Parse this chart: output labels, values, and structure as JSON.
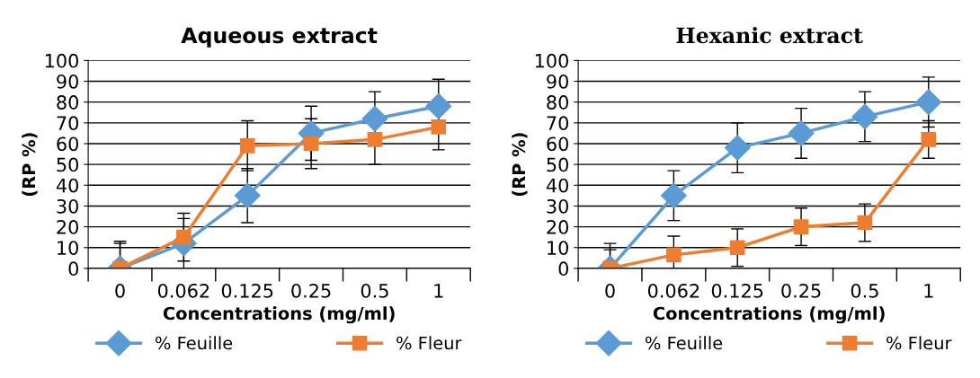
{
  "chart_data": [
    {
      "type": "line",
      "title": "Aqueous extract",
      "xlabel": "Concentrations (mg/ml)",
      "ylabel": "(RP %)",
      "categories": [
        "0",
        "0.062",
        "0.125",
        "0.25",
        "0.5",
        "1"
      ],
      "ylim": [
        0,
        100
      ],
      "yticks": [
        0,
        10,
        20,
        30,
        40,
        50,
        60,
        70,
        80,
        90,
        100
      ],
      "grid": "y",
      "legend": "bottom",
      "series": [
        {
          "name": "% Feuille",
          "color": "#5b9bd5",
          "marker": "diamond",
          "values": [
            0,
            12,
            35,
            65,
            72,
            78
          ],
          "errors": [
            12,
            12,
            13,
            13,
            13,
            13
          ]
        },
        {
          "name": "% Fleur",
          "color": "#ed7d31",
          "marker": "square",
          "values": [
            0,
            15,
            59,
            60,
            62,
            68
          ],
          "errors": [
            13,
            11.5,
            12,
            12,
            12,
            11
          ]
        }
      ]
    },
    {
      "type": "line",
      "title": "Hexanic extract",
      "xlabel": "Concentrations (mg/ml)",
      "ylabel": "(RP %)",
      "categories": [
        "0",
        "0.062",
        "0.125",
        "0.25",
        "0.5",
        "1"
      ],
      "ylim": [
        0,
        100
      ],
      "yticks": [
        0,
        10,
        20,
        30,
        40,
        50,
        60,
        70,
        80,
        90,
        100
      ],
      "grid": "y",
      "legend": "bottom",
      "series": [
        {
          "name": "% Feuille",
          "color": "#5b9bd5",
          "marker": "diamond",
          "values": [
            0,
            35,
            58,
            65,
            73,
            80
          ],
          "errors": [
            12,
            12,
            12,
            12,
            12,
            12
          ]
        },
        {
          "name": "% Fleur",
          "color": "#ed7d31",
          "marker": "square",
          "values": [
            0,
            6.5,
            10,
            20,
            22,
            62
          ],
          "errors": [
            9,
            9,
            9,
            9,
            9,
            9
          ]
        }
      ]
    }
  ]
}
